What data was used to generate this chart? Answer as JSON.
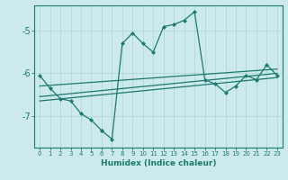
{
  "xlabel": "Humidex (Indice chaleur)",
  "bg_color": "#cce9ec",
  "grid_color": "#b0d8dc",
  "line_color": "#1a7a6e",
  "series1_x": [
    0,
    1,
    2,
    3,
    4,
    5,
    6
  ],
  "series1_y": [
    -6.05,
    -6.35,
    -6.6,
    -6.65,
    -6.95,
    -7.1,
    -7.35
  ],
  "series2_x": [
    6,
    7,
    8,
    9,
    10,
    11,
    12,
    13,
    14,
    15,
    16,
    17,
    18,
    19,
    20,
    21,
    22,
    23
  ],
  "series2_y": [
    -7.35,
    -7.55,
    -5.3,
    -5.05,
    -5.3,
    -5.5,
    -4.9,
    -4.85,
    -4.75,
    -4.55,
    -6.15,
    -6.25,
    -6.45,
    -6.3,
    -6.05,
    -6.15,
    -5.8,
    -6.05
  ],
  "trend1_x": [
    0,
    23
  ],
  "trend1_y": [
    -6.3,
    -5.9
  ],
  "trend2_x": [
    0,
    23
  ],
  "trend2_y": [
    -6.55,
    -6.0
  ],
  "trend3_x": [
    0,
    23
  ],
  "trend3_y": [
    -6.65,
    -6.1
  ],
  "ylim": [
    -7.75,
    -4.4
  ],
  "yticks": [
    -7,
    -6,
    -5
  ],
  "ytick_labels": [
    "-7",
    "-6",
    "-5"
  ],
  "xlim": [
    -0.5,
    23.5
  ],
  "xticks": [
    0,
    1,
    2,
    3,
    4,
    5,
    6,
    7,
    8,
    9,
    10,
    11,
    12,
    13,
    14,
    15,
    16,
    17,
    18,
    19,
    20,
    21,
    22,
    23
  ]
}
